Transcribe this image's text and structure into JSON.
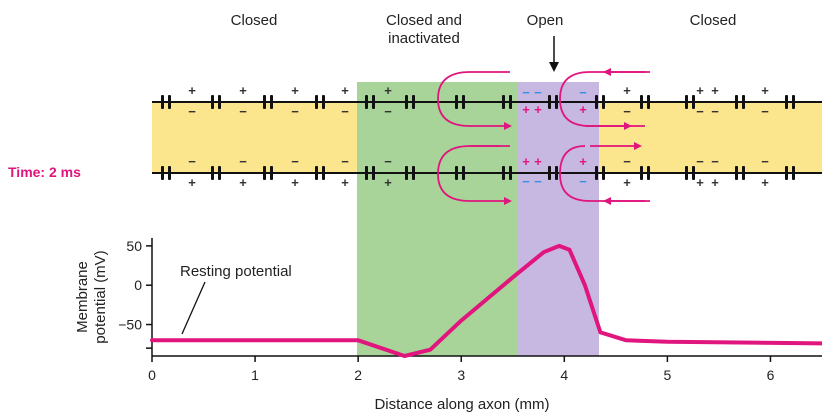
{
  "state_labels": {
    "closed_left": "Closed",
    "closed_inactivated": "Closed and\ninactivated",
    "open": "Open",
    "closed_right": "Closed"
  },
  "time_label": "Time: 2 ms",
  "graph": {
    "ylabel_line1": "Membrane",
    "ylabel_line2": "potential (mV)",
    "xlabel": "Distance along axon (mm)",
    "annotation": "Resting potential",
    "y_ticks": [
      "50",
      "0",
      "−50"
    ],
    "x_ticks": [
      "0",
      "1",
      "2",
      "3",
      "4",
      "5",
      "6"
    ]
  },
  "colors": {
    "membrane_yellow": "#fbe68e",
    "inactivated_green": "#a8d49a",
    "open_purple": "#c7b8e2",
    "trace_magenta": "#e0157d",
    "negative_blue": "#3b8fe0"
  },
  "chart_data": {
    "type": "line",
    "xlabel": "Distance along axon (mm)",
    "ylabel": "Membrane potential (mV)",
    "xlim": [
      0,
      6.5
    ],
    "ylim": [
      -90,
      60
    ],
    "regions": [
      {
        "name": "inactivated",
        "x": [
          2.0,
          3.55
        ]
      },
      {
        "name": "open",
        "x": [
          3.55,
          4.35
        ]
      }
    ],
    "x": [
      0,
      2.0,
      2.45,
      2.7,
      3.0,
      3.5,
      3.8,
      3.95,
      4.05,
      4.2,
      4.35,
      4.6,
      5.0,
      6.5
    ],
    "y": [
      -70,
      -70,
      -90,
      -82,
      -45,
      10,
      42,
      50,
      45,
      0,
      -60,
      -70,
      -72,
      -74
    ]
  }
}
